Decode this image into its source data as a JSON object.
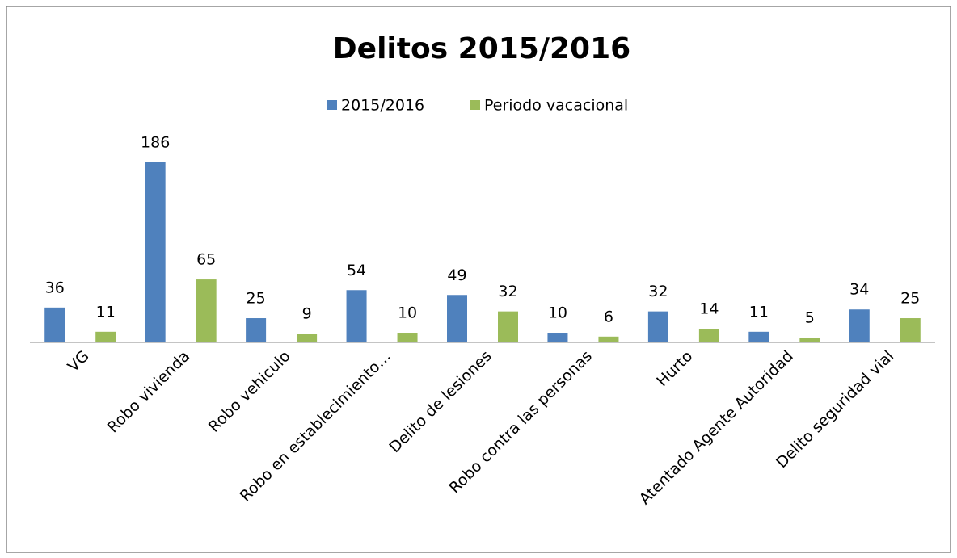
{
  "chart_data": {
    "type": "bar",
    "title": "Delitos 2015/2016",
    "categories": [
      "VG",
      "Robo vivienda",
      "Robo vehiculo",
      "Robo en establecimiento…",
      "Delito de lesiones",
      "Robo contra las personas",
      "Hurto",
      "Atentado Agente Autoridad",
      "Delito seguridad vial"
    ],
    "series": [
      {
        "name": "2015/2016",
        "color": "#4f81bd",
        "values": [
          36,
          186,
          25,
          54,
          49,
          10,
          32,
          11,
          34
        ]
      },
      {
        "name": "Periodo vacacional",
        "color": "#9bbb59",
        "values": [
          11,
          65,
          9,
          10,
          32,
          6,
          14,
          5,
          25
        ]
      }
    ],
    "legend": "top"
  }
}
